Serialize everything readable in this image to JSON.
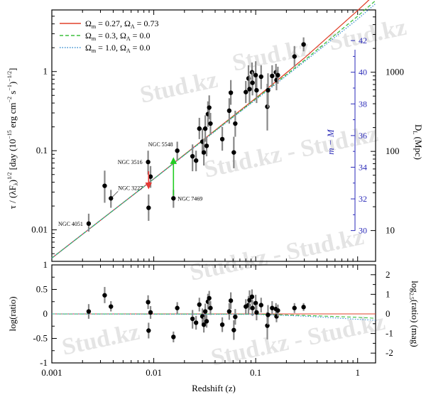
{
  "watermark": {
    "text": "Stud.kz",
    "text_alt": "Stud.kz - Stud.kz",
    "color": "#d9d9d9"
  },
  "chart_data": [
    {
      "type": "scatter",
      "title": "",
      "xlabel": "",
      "ylabel": "τ / (λF_λ)^1/2  [day (10^-15 erg cm^-2 s^-1)^-1/2]",
      "ylabel_parts": {
        "main": "τ / (λF",
        "sub": "λ",
        "close": ")",
        "exp": "1/2",
        "units": "[day  (10",
        "units_exp1": "−15",
        "units_mid": " erg cm",
        "units_exp2": "−2",
        "units_s": " s",
        "units_exp3": "−1",
        "units_close": ")",
        "units_exp4": "−1/2",
        "units_end": "]"
      },
      "y2label_inner": "m − M",
      "y2label_outer_main": "D",
      "y2label_outer_sub": "L",
      "y2label_outer_units": " (Mpc)",
      "xscale": "log",
      "yscale": "log",
      "xlim": [
        0.001,
        1.5
      ],
      "ylim": [
        0.004,
        6.0
      ],
      "x_ticks": [
        0.001,
        0.01,
        0.1,
        1
      ],
      "x_tick_labels": [
        "",
        "",
        "",
        ""
      ],
      "y_ticks": [
        0.01,
        0.1,
        1
      ],
      "y_tick_labels": [
        "0.01",
        "0.1",
        "1"
      ],
      "mag_axis_ticks": [
        30,
        32,
        34,
        36,
        38,
        40,
        42
      ],
      "mag_axis_tick_labels": [
        "30",
        "32",
        "34",
        "36",
        "38",
        "40",
        "42"
      ],
      "dl_axis_ticks": [
        10,
        100,
        1000
      ],
      "dl_axis_tick_labels": [
        "10",
        "100",
        "1000"
      ],
      "legend": {
        "placement": "top-left",
        "entries": [
          {
            "omega_m": "0.27",
            "omega_l": "0.73",
            "color": "#e0402a",
            "dash": "solid"
          },
          {
            "omega_m": "0.3",
            "omega_l": "0.0",
            "color": "#3fbf3f",
            "dash": "dashed"
          },
          {
            "omega_m": "1.0",
            "omega_l": "0.0",
            "color": "#3a8fd0",
            "dash": "dotted"
          }
        ]
      },
      "models": [
        {
          "color": "#e0402a",
          "dash": "solid",
          "x": [
            0.001,
            0.01,
            0.1,
            0.3,
            1.0,
            1.5
          ],
          "y": [
            0.0044,
            0.044,
            0.46,
            1.48,
            5.9,
            9.6
          ]
        },
        {
          "color": "#3fbf3f",
          "dash": "dashed",
          "x": [
            0.001,
            0.01,
            0.1,
            0.3,
            1.0,
            1.5
          ],
          "y": [
            0.0044,
            0.044,
            0.45,
            1.38,
            5.0,
            7.9
          ]
        },
        {
          "color": "#3a8fd0",
          "dash": "dotted",
          "x": [
            0.001,
            0.01,
            0.1,
            0.3,
            1.0,
            1.5
          ],
          "y": [
            0.0044,
            0.044,
            0.44,
            1.33,
            4.6,
            7.2
          ]
        }
      ],
      "points": [
        {
          "x": 0.0023,
          "y": 0.012,
          "lo": 0.0095,
          "hi": 0.016
        },
        {
          "x": 0.0033,
          "y": 0.036,
          "lo": 0.022,
          "hi": 0.056
        },
        {
          "x": 0.0038,
          "y": 0.025,
          "lo": 0.019,
          "hi": 0.032
        },
        {
          "x": 0.0088,
          "y": 0.072,
          "lo": 0.05,
          "hi": 0.1
        },
        {
          "x": 0.0089,
          "y": 0.019,
          "lo": 0.013,
          "hi": 0.028
        },
        {
          "x": 0.0093,
          "y": 0.047,
          "lo": 0.034,
          "hi": 0.064
        },
        {
          "x": 0.0156,
          "y": 0.025,
          "lo": 0.019,
          "hi": 0.032
        },
        {
          "x": 0.017,
          "y": 0.1,
          "lo": 0.075,
          "hi": 0.13
        },
        {
          "x": 0.024,
          "y": 0.085,
          "lo": 0.055,
          "hi": 0.12
        },
        {
          "x": 0.026,
          "y": 0.075,
          "lo": 0.055,
          "hi": 0.1
        },
        {
          "x": 0.028,
          "y": 0.19,
          "lo": 0.14,
          "hi": 0.26
        },
        {
          "x": 0.03,
          "y": 0.13,
          "lo": 0.09,
          "hi": 0.19
        },
        {
          "x": 0.031,
          "y": 0.095,
          "lo": 0.065,
          "hi": 0.14
        },
        {
          "x": 0.032,
          "y": 0.19,
          "lo": 0.13,
          "hi": 0.28
        },
        {
          "x": 0.033,
          "y": 0.115,
          "lo": 0.085,
          "hi": 0.15
        },
        {
          "x": 0.034,
          "y": 0.29,
          "lo": 0.2,
          "hi": 0.42
        },
        {
          "x": 0.035,
          "y": 0.35,
          "lo": 0.25,
          "hi": 0.5
        },
        {
          "x": 0.036,
          "y": 0.22,
          "lo": 0.16,
          "hi": 0.3
        },
        {
          "x": 0.047,
          "y": 0.14,
          "lo": 0.1,
          "hi": 0.2
        },
        {
          "x": 0.055,
          "y": 0.32,
          "lo": 0.22,
          "hi": 0.46
        },
        {
          "x": 0.057,
          "y": 0.54,
          "lo": 0.38,
          "hi": 0.78
        },
        {
          "x": 0.061,
          "y": 0.095,
          "lo": 0.06,
          "hi": 0.15
        },
        {
          "x": 0.063,
          "y": 0.22,
          "lo": 0.15,
          "hi": 0.32
        },
        {
          "x": 0.08,
          "y": 0.55,
          "lo": 0.4,
          "hi": 0.76
        },
        {
          "x": 0.085,
          "y": 0.82,
          "lo": 0.55,
          "hi": 1.2
        },
        {
          "x": 0.087,
          "y": 0.6,
          "lo": 0.4,
          "hi": 0.9
        },
        {
          "x": 0.092,
          "y": 0.98,
          "lo": 0.7,
          "hi": 1.3
        },
        {
          "x": 0.093,
          "y": 0.72,
          "lo": 0.5,
          "hi": 1.0
        },
        {
          "x": 0.1,
          "y": 0.9,
          "lo": 0.6,
          "hi": 1.35
        },
        {
          "x": 0.102,
          "y": 0.58,
          "lo": 0.4,
          "hi": 0.85
        },
        {
          "x": 0.113,
          "y": 0.86,
          "lo": 0.6,
          "hi": 1.2
        },
        {
          "x": 0.13,
          "y": 0.36,
          "lo": 0.18,
          "hi": 0.7
        },
        {
          "x": 0.132,
          "y": 0.58,
          "lo": 0.35,
          "hi": 0.95
        },
        {
          "x": 0.145,
          "y": 0.88,
          "lo": 0.65,
          "hi": 1.2
        },
        {
          "x": 0.158,
          "y": 0.98,
          "lo": 0.75,
          "hi": 1.25
        },
        {
          "x": 0.16,
          "y": 0.78,
          "lo": 0.58,
          "hi": 1.05
        },
        {
          "x": 0.165,
          "y": 0.9,
          "lo": 0.7,
          "hi": 1.15
        },
        {
          "x": 0.24,
          "y": 1.55,
          "lo": 1.15,
          "hi": 2.1
        },
        {
          "x": 0.295,
          "y": 2.2,
          "lo": 1.8,
          "hi": 2.7
        }
      ],
      "labels": [
        {
          "text": "NGC 4051",
          "x": 0.0023,
          "y": 0.012,
          "pos": "left"
        },
        {
          "text": "NGC 3227",
          "x": 0.0038,
          "y": 0.025,
          "pos": "upper-right"
        },
        {
          "text": "NGC 3516",
          "x": 0.0088,
          "y": 0.072,
          "pos": "left"
        },
        {
          "text": "NGC 5548",
          "x": 0.017,
          "y": 0.1,
          "pos": "upper-left"
        },
        {
          "text": "NGC 7469",
          "x": 0.0156,
          "y": 0.025,
          "pos": "right"
        }
      ],
      "arrows": [
        {
          "color": "#e53935",
          "from_y": 0.055,
          "to_y": 0.036,
          "x": 0.0089
        },
        {
          "color": "#22cc22",
          "from_y": 0.027,
          "to_y": 0.075,
          "x": 0.0156
        }
      ]
    },
    {
      "type": "scatter",
      "title": "",
      "xlabel": "Redshift (z)",
      "ylabel": "log(ratio)",
      "y2label_main": "log",
      "y2label_sub": "2.5",
      "y2label_units": "(ratio) (mag)",
      "xscale": "log",
      "xlim": [
        0.001,
        1.5
      ],
      "ylim": [
        -1,
        1
      ],
      "x_ticks": [
        0.001,
        0.01,
        0.1,
        1
      ],
      "x_tick_labels": [
        "0.001",
        "0.01",
        "0.1",
        "1"
      ],
      "y_ticks": [
        -1,
        -0.5,
        0,
        0.5,
        1
      ],
      "y_tick_labels": [
        "-1",
        "-0.5",
        "0",
        "0.5",
        "1"
      ],
      "mag_ticks": [
        -2,
        -1,
        0,
        1,
        2
      ],
      "mag_tick_labels": [
        "-2",
        "-1",
        "0",
        "1",
        "2"
      ],
      "models": [
        {
          "color": "#e0402a",
          "dash": "solid",
          "x": [
            0.001,
            1.5
          ],
          "y": [
            0.0,
            0.0
          ]
        },
        {
          "color": "#3fbf3f",
          "dash": "dashed",
          "x": [
            0.001,
            0.1,
            0.3,
            1.0,
            1.5
          ],
          "y": [
            0.0,
            -0.005,
            -0.03,
            -0.07,
            -0.09
          ]
        },
        {
          "color": "#3a8fd0",
          "dash": "dotted",
          "x": [
            0.001,
            0.1,
            0.3,
            1.0,
            1.5
          ],
          "y": [
            0.0,
            -0.01,
            -0.045,
            -0.11,
            -0.13
          ]
        }
      ],
      "points": [
        {
          "x": 0.0023,
          "y": 0.05,
          "lo": -0.1,
          "hi": 0.2
        },
        {
          "x": 0.0033,
          "y": 0.38,
          "lo": 0.22,
          "hi": 0.55
        },
        {
          "x": 0.0038,
          "y": 0.15,
          "lo": 0.05,
          "hi": 0.26
        },
        {
          "x": 0.0088,
          "y": 0.24,
          "lo": 0.1,
          "hi": 0.38
        },
        {
          "x": 0.0089,
          "y": -0.34,
          "lo": -0.5,
          "hi": -0.18
        },
        {
          "x": 0.0093,
          "y": 0.03,
          "lo": -0.1,
          "hi": 0.16
        },
        {
          "x": 0.0156,
          "y": -0.47,
          "lo": -0.58,
          "hi": -0.36
        },
        {
          "x": 0.017,
          "y": 0.12,
          "lo": 0.0,
          "hi": 0.24
        },
        {
          "x": 0.024,
          "y": -0.1,
          "lo": -0.3,
          "hi": 0.08
        },
        {
          "x": 0.026,
          "y": -0.18,
          "lo": -0.32,
          "hi": -0.04
        },
        {
          "x": 0.028,
          "y": 0.19,
          "lo": 0.05,
          "hi": 0.33
        },
        {
          "x": 0.03,
          "y": -0.05,
          "lo": -0.21,
          "hi": 0.11
        },
        {
          "x": 0.031,
          "y": -0.22,
          "lo": -0.38,
          "hi": -0.06
        },
        {
          "x": 0.032,
          "y": 0.05,
          "lo": -0.11,
          "hi": 0.21
        },
        {
          "x": 0.033,
          "y": -0.15,
          "lo": -0.28,
          "hi": -0.02
        },
        {
          "x": 0.034,
          "y": 0.25,
          "lo": 0.09,
          "hi": 0.41
        },
        {
          "x": 0.035,
          "y": 0.32,
          "lo": 0.17,
          "hi": 0.47
        },
        {
          "x": 0.036,
          "y": 0.12,
          "lo": -0.02,
          "hi": 0.26
        },
        {
          "x": 0.047,
          "y": -0.22,
          "lo": -0.37,
          "hi": -0.07
        },
        {
          "x": 0.055,
          "y": 0.05,
          "lo": -0.12,
          "hi": 0.22
        },
        {
          "x": 0.057,
          "y": 0.27,
          "lo": 0.1,
          "hi": 0.44
        },
        {
          "x": 0.061,
          "y": -0.33,
          "lo": -0.53,
          "hi": -0.13
        },
        {
          "x": 0.063,
          "y": -0.06,
          "lo": -0.22,
          "hi": 0.1
        },
        {
          "x": 0.08,
          "y": 0.15,
          "lo": 0.0,
          "hi": 0.3
        },
        {
          "x": 0.085,
          "y": 0.18,
          "lo": 0.0,
          "hi": 0.36
        },
        {
          "x": 0.087,
          "y": 0.28,
          "lo": 0.08,
          "hi": 0.48
        },
        {
          "x": 0.092,
          "y": 0.35,
          "lo": 0.2,
          "hi": 0.5
        },
        {
          "x": 0.093,
          "y": 0.12,
          "lo": -0.04,
          "hi": 0.28
        },
        {
          "x": 0.1,
          "y": 0.22,
          "lo": 0.05,
          "hi": 0.39
        },
        {
          "x": 0.102,
          "y": 0.03,
          "lo": -0.13,
          "hi": 0.19
        },
        {
          "x": 0.113,
          "y": 0.18,
          "lo": 0.03,
          "hi": 0.33
        },
        {
          "x": 0.13,
          "y": -0.24,
          "lo": -0.52,
          "hi": 0.04
        },
        {
          "x": 0.132,
          "y": -0.02,
          "lo": -0.22,
          "hi": 0.18
        },
        {
          "x": 0.145,
          "y": 0.12,
          "lo": -0.02,
          "hi": 0.26
        },
        {
          "x": 0.158,
          "y": 0.1,
          "lo": -0.02,
          "hi": 0.22
        },
        {
          "x": 0.16,
          "y": -0.05,
          "lo": -0.17,
          "hi": 0.07
        },
        {
          "x": 0.165,
          "y": 0.07,
          "lo": -0.05,
          "hi": 0.19
        },
        {
          "x": 0.24,
          "y": 0.12,
          "lo": 0.02,
          "hi": 0.22
        },
        {
          "x": 0.295,
          "y": 0.14,
          "lo": 0.06,
          "hi": 0.22
        }
      ]
    }
  ]
}
